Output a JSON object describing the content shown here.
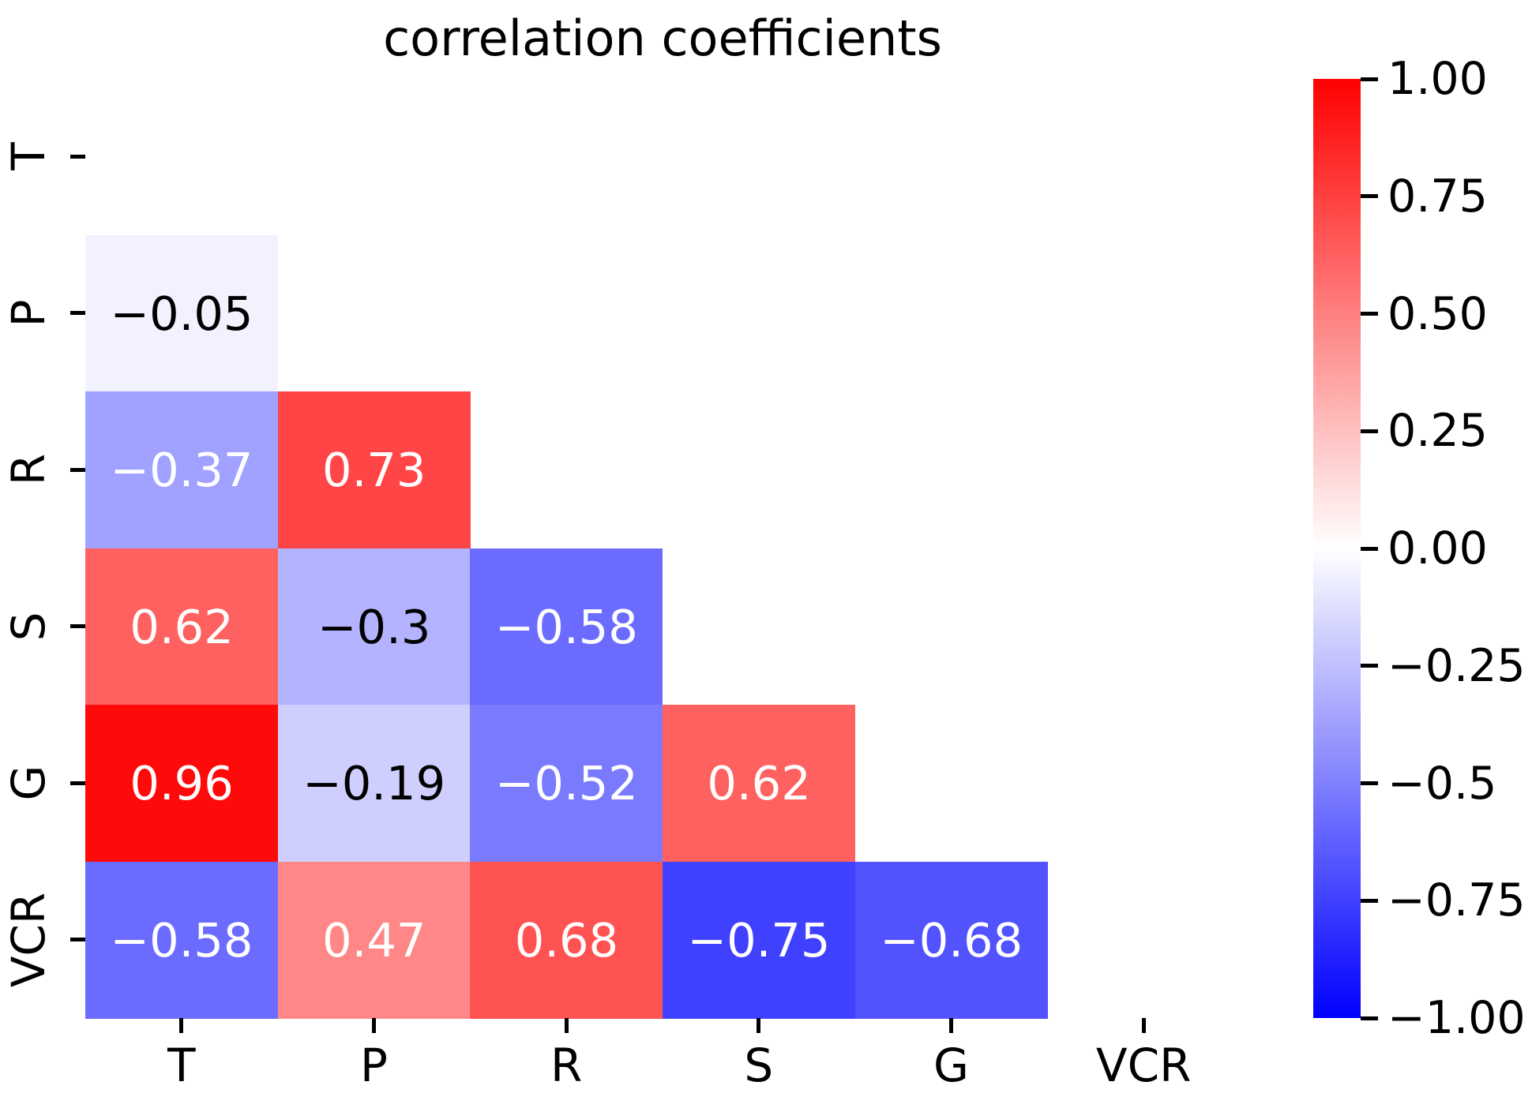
{
  "title": "correlation coefficients",
  "chart_data": {
    "type": "heatmap",
    "title": "correlation coefficients",
    "x_labels": [
      "T",
      "P",
      "R",
      "S",
      "G",
      "VCR"
    ],
    "y_labels": [
      "T",
      "P",
      "R",
      "S",
      "G",
      "VCR"
    ],
    "colormap": "bwr",
    "mask": "upper triangle and diagonal hidden (only cells below the diagonal are drawn)",
    "vmin": -1,
    "vmax": 1,
    "grid": false,
    "cells": [
      {
        "row": "P",
        "col": "T",
        "value": -0.05,
        "label": "−0.05",
        "text_color": "#000000"
      },
      {
        "row": "R",
        "col": "T",
        "value": -0.37,
        "label": "−0.37",
        "text_color": "#ffffff"
      },
      {
        "row": "R",
        "col": "P",
        "value": 0.73,
        "label": "0.73",
        "text_color": "#ffffff"
      },
      {
        "row": "S",
        "col": "T",
        "value": 0.62,
        "label": "0.62",
        "text_color": "#ffffff"
      },
      {
        "row": "S",
        "col": "P",
        "value": -0.3,
        "label": "−0.3",
        "text_color": "#000000"
      },
      {
        "row": "S",
        "col": "R",
        "value": -0.58,
        "label": "−0.58",
        "text_color": "#ffffff"
      },
      {
        "row": "G",
        "col": "T",
        "value": 0.96,
        "label": "0.96",
        "text_color": "#ffffff"
      },
      {
        "row": "G",
        "col": "P",
        "value": -0.19,
        "label": "−0.19",
        "text_color": "#000000"
      },
      {
        "row": "G",
        "col": "R",
        "value": -0.52,
        "label": "−0.52",
        "text_color": "#ffffff"
      },
      {
        "row": "G",
        "col": "S",
        "value": 0.62,
        "label": "0.62",
        "text_color": "#ffffff"
      },
      {
        "row": "VCR",
        "col": "T",
        "value": -0.58,
        "label": "−0.58",
        "text_color": "#ffffff"
      },
      {
        "row": "VCR",
        "col": "P",
        "value": 0.47,
        "label": "0.47",
        "text_color": "#ffffff"
      },
      {
        "row": "VCR",
        "col": "R",
        "value": 0.68,
        "label": "0.68",
        "text_color": "#ffffff"
      },
      {
        "row": "VCR",
        "col": "S",
        "value": -0.75,
        "label": "−0.75",
        "text_color": "#ffffff"
      },
      {
        "row": "VCR",
        "col": "G",
        "value": -0.68,
        "label": "−0.68",
        "text_color": "#ffffff"
      }
    ],
    "colorbar": {
      "position": "right",
      "top_color": "#ff0000",
      "mid_color": "#ffffff",
      "bottom_color": "#0000ff",
      "ticks": [
        {
          "value": 1.0,
          "label": "1.00"
        },
        {
          "value": 0.75,
          "label": "0.75"
        },
        {
          "value": 0.5,
          "label": "0.50"
        },
        {
          "value": 0.25,
          "label": "0.25"
        },
        {
          "value": 0.0,
          "label": "0.00"
        },
        {
          "value": -0.25,
          "label": "−0.25"
        },
        {
          "value": -0.5,
          "label": "−0.5"
        },
        {
          "value": -0.75,
          "label": "−0.75"
        },
        {
          "value": -1.0,
          "label": "−1.00"
        }
      ]
    }
  }
}
